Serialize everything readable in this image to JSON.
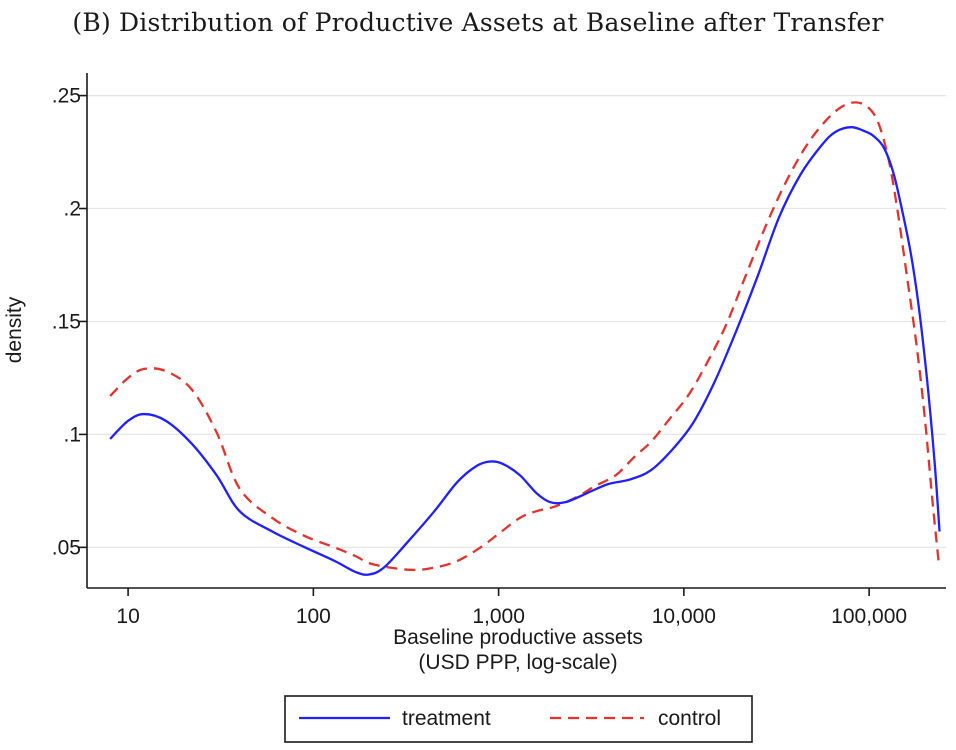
{
  "title": "(B) Distribution of Productive Assets at Baseline after Transfer",
  "chart_data": {
    "type": "line",
    "title": "(B) Distribution of Productive Assets at Baseline after Transfer",
    "xlabel_line1": "Baseline productive assets",
    "xlabel_line2": "(USD PPP, log-scale)",
    "ylabel": "density",
    "x_scale": "log",
    "xlim": [
      6,
      260000
    ],
    "ylim": [
      0.032,
      0.26
    ],
    "x_ticks": [
      {
        "value": 10,
        "label": "10"
      },
      {
        "value": 100,
        "label": "100"
      },
      {
        "value": 1000,
        "label": "1,000"
      },
      {
        "value": 10000,
        "label": "10,000"
      },
      {
        "value": 100000,
        "label": "100,000"
      }
    ],
    "y_ticks": [
      {
        "value": 0.05,
        "label": ".05"
      },
      {
        "value": 0.1,
        "label": ".1"
      },
      {
        "value": 0.15,
        "label": ".15"
      },
      {
        "value": 0.2,
        "label": ".2"
      },
      {
        "value": 0.25,
        "label": ".25"
      }
    ],
    "grid": true,
    "legend_position": "bottom",
    "series": [
      {
        "name": "treatment",
        "color": "#1f1fff",
        "dash": "solid",
        "points": [
          [
            8,
            0.098
          ],
          [
            10,
            0.106
          ],
          [
            12.2,
            0.109
          ],
          [
            16,
            0.106
          ],
          [
            22,
            0.096
          ],
          [
            30,
            0.082
          ],
          [
            40,
            0.066
          ],
          [
            60,
            0.057
          ],
          [
            90,
            0.05
          ],
          [
            130,
            0.044
          ],
          [
            170,
            0.039
          ],
          [
            200,
            0.038
          ],
          [
            240,
            0.041
          ],
          [
            320,
            0.052
          ],
          [
            450,
            0.066
          ],
          [
            600,
            0.079
          ],
          [
            760,
            0.086
          ],
          [
            900,
            0.088
          ],
          [
            1050,
            0.087
          ],
          [
            1300,
            0.082
          ],
          [
            1600,
            0.074
          ],
          [
            1900,
            0.07
          ],
          [
            2300,
            0.07
          ],
          [
            3000,
            0.074
          ],
          [
            3900,
            0.078
          ],
          [
            5100,
            0.08
          ],
          [
            6600,
            0.084
          ],
          [
            8600,
            0.093
          ],
          [
            11200,
            0.105
          ],
          [
            14600,
            0.123
          ],
          [
            19000,
            0.145
          ],
          [
            25000,
            0.17
          ],
          [
            32600,
            0.196
          ],
          [
            42600,
            0.215
          ],
          [
            55400,
            0.228
          ],
          [
            66000,
            0.234
          ],
          [
            80500,
            0.236
          ],
          [
            96000,
            0.234
          ],
          [
            106000,
            0.232
          ],
          [
            120000,
            0.227
          ],
          [
            135000,
            0.216
          ],
          [
            150000,
            0.2
          ],
          [
            168000,
            0.18
          ],
          [
            185000,
            0.157
          ],
          [
            205000,
            0.125
          ],
          [
            225000,
            0.089
          ],
          [
            240000,
            0.057
          ]
        ]
      },
      {
        "name": "control",
        "color": "#e5322b",
        "dash": "dashed",
        "points": [
          [
            8,
            0.117
          ],
          [
            10,
            0.125
          ],
          [
            12.2,
            0.129
          ],
          [
            16,
            0.128
          ],
          [
            22,
            0.12
          ],
          [
            30,
            0.101
          ],
          [
            40,
            0.076
          ],
          [
            60,
            0.063
          ],
          [
            90,
            0.055
          ],
          [
            130,
            0.05
          ],
          [
            170,
            0.046
          ],
          [
            200,
            0.043
          ],
          [
            260,
            0.041
          ],
          [
            350,
            0.04
          ],
          [
            450,
            0.041
          ],
          [
            600,
            0.044
          ],
          [
            800,
            0.05
          ],
          [
            1000,
            0.056
          ],
          [
            1300,
            0.063
          ],
          [
            1600,
            0.066
          ],
          [
            2000,
            0.068
          ],
          [
            2600,
            0.072
          ],
          [
            3300,
            0.077
          ],
          [
            4300,
            0.082
          ],
          [
            5400,
            0.09
          ],
          [
            6700,
            0.097
          ],
          [
            8400,
            0.107
          ],
          [
            10500,
            0.117
          ],
          [
            13000,
            0.13
          ],
          [
            16800,
            0.148
          ],
          [
            21500,
            0.17
          ],
          [
            27900,
            0.193
          ],
          [
            35700,
            0.212
          ],
          [
            46000,
            0.228
          ],
          [
            58500,
            0.239
          ],
          [
            71000,
            0.245
          ],
          [
            84000,
            0.247
          ],
          [
            98000,
            0.245
          ],
          [
            112000,
            0.238
          ],
          [
            128000,
            0.221
          ],
          [
            143000,
            0.198
          ],
          [
            160000,
            0.17
          ],
          [
            180000,
            0.14
          ],
          [
            200000,
            0.107
          ],
          [
            220000,
            0.07
          ],
          [
            237000,
            0.044
          ]
        ]
      }
    ],
    "legend": [
      {
        "name": "treatment",
        "color": "#1f1fff",
        "dash": "solid"
      },
      {
        "name": "control",
        "color": "#e5322b",
        "dash": "dashed"
      }
    ]
  }
}
